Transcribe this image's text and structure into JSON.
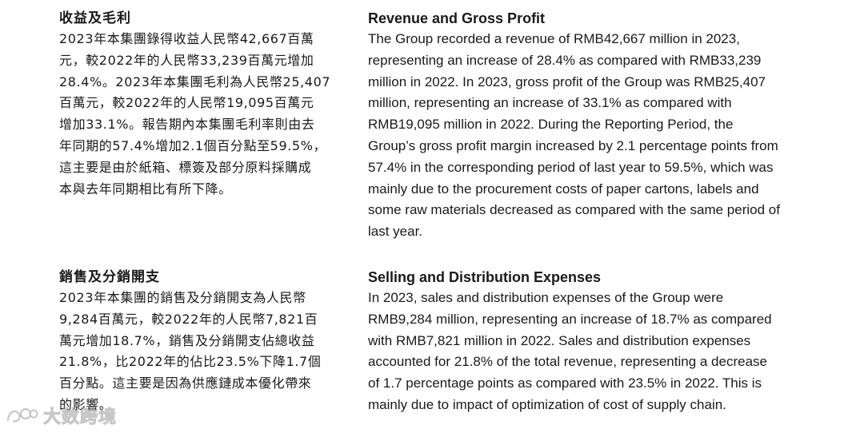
{
  "revenue_section": {
    "zh_heading": "收益及毛利",
    "zh_lines": [
      "2023年本集團錄得收益人民幣42,667百萬",
      "元，較2022年的人民幣33,239百萬元增加",
      "28.4%。2023年本集團毛利為人民幣25,407",
      "百萬元，較2022年的人民幣19,095百萬元",
      "增加33.1%。報告期內本集團毛利率則由去",
      "年同期的57.4%增加2.1個百分點至59.5%，",
      "這主要是由於紙箱、標簽及部分原料採購成",
      "本與去年同期相比有所下降。"
    ],
    "en_heading": "Revenue and Gross Profit",
    "en_lines": [
      "The Group recorded a revenue of RMB42,667 million in 2023,",
      "representing an increase of 28.4% as compared with RMB33,239",
      "million in 2022. In 2023, gross profit of the Group was RMB25,407",
      "million, representing an increase of 33.1% as compared with",
      "RMB19,095 million in 2022. During the Reporting Period, the",
      "Group’s gross profit margin increased by 2.1 percentage points from",
      "57.4% in the corresponding period of last year to 59.5%, which was",
      "mainly due to the procurement costs of paper cartons, labels and",
      "some raw materials decreased as compared with the same period of",
      "last year."
    ]
  },
  "selling_section": {
    "zh_heading": "銷售及分銷開支",
    "zh_lines": [
      "2023年本集團的銷售及分銷開支為人民幣",
      "9,284百萬元，較2022年的人民幣7,821百",
      "萬元增加18.7%，銷售及分銷開支佔總收益",
      "21.8%，比2022年的佔比23.5%下降1.7個",
      "百分點。這主要是因為供應鏈成本優化帶來",
      "的影響。"
    ],
    "en_heading": "Selling and Distribution Expenses",
    "en_lines": [
      "In 2023, sales and distribution expenses of the Group were",
      "RMB9,284 million, representing an increase of 18.7% as compared",
      "with RMB7,821 million in 2022. Sales and distribution expenses",
      "accounted for 21.8% of the total revenue, representing a decrease",
      "of 1.7 percentage points as compared with 23.5% in 2022. This is",
      "mainly due to impact of optimization of cost of supply chain."
    ]
  },
  "watermark": {
    "text": "大数跨境",
    "icon": "watermark-logo-icon"
  }
}
